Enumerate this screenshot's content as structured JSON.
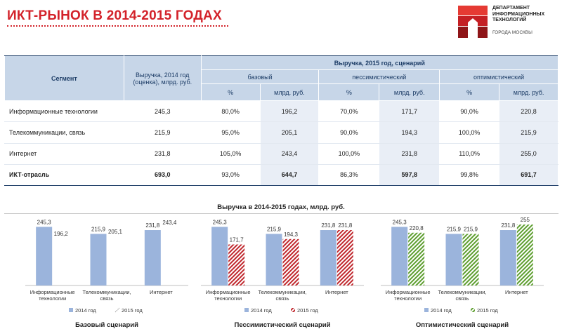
{
  "header": {
    "title": "ИКТ-РЫНОК В 2014-2015 ГОДАХ",
    "logo_lines": [
      "ДЕПАРТАМЕНТ",
      "ИНФОРМАЦИОННЫХ",
      "ТЕХНОЛОГИЙ"
    ],
    "logo_sub": "ГОРОДА МОСКВЫ",
    "logo_colors": [
      "#e53a33",
      "#c41f24",
      "#8f1518"
    ]
  },
  "table": {
    "h_segment": "Сегмент",
    "h_rev2014": "Выручка, 2014 год (оценка), млрд. руб.",
    "h_rev2015": "Выручка, 2015 год, сценарий",
    "scenarios": [
      "базовый",
      "пессимистический",
      "оптимистический"
    ],
    "h_pct": "%",
    "h_bln": "млрд. руб.",
    "rows": [
      {
        "name": "Информационные технологии",
        "v2014": "245,3",
        "base_pct": "80,0%",
        "base_val": "196,2",
        "pess_pct": "70,0%",
        "pess_val": "171,7",
        "opt_pct": "90,0%",
        "opt_val": "220,8"
      },
      {
        "name": "Телекоммуникации, связь",
        "v2014": "215,9",
        "base_pct": "95,0%",
        "base_val": "205,1",
        "pess_pct": "90,0%",
        "pess_val": "194,3",
        "opt_pct": "100,0%",
        "opt_val": "215,9"
      },
      {
        "name": "Интернет",
        "v2014": "231,8",
        "base_pct": "105,0%",
        "base_val": "243,4",
        "pess_pct": "100,0%",
        "pess_val": "231,8",
        "opt_pct": "110,0%",
        "opt_val": "255,0"
      },
      {
        "name": "ИКТ-отрасль",
        "v2014": "693,0",
        "base_pct": "93,0%",
        "base_val": "644,7",
        "pess_pct": "86,3%",
        "pess_val": "597,8",
        "opt_pct": "99,8%",
        "opt_val": "691,7"
      }
    ]
  },
  "charts_title": "Выручка в 2014-2015 годах, млрд. руб.",
  "chart_data": [
    {
      "type": "bar",
      "title": "Базовый сценарий",
      "categories": [
        [
          "Информационные",
          "технологии"
        ],
        [
          "Телекоммуникации,",
          "связь"
        ],
        [
          "Интернет"
        ]
      ],
      "series": [
        {
          "name": "2014 год",
          "values": [
            245.3,
            215.9,
            231.8
          ],
          "labels": [
            "245,3",
            "215,9",
            "231,8"
          ],
          "color": "#9bb4dc",
          "pattern": "solid"
        },
        {
          "name": "2015 год",
          "values": [
            196.2,
            205.1,
            243.4
          ],
          "labels": [
            "196,2",
            "205,1",
            "243,4"
          ],
          "color": "#ffffff",
          "pattern": "none"
        }
      ],
      "ylim": [
        0,
        270
      ]
    },
    {
      "type": "bar",
      "title": "Пессимистический сценарий",
      "categories": [
        [
          "Информационные",
          "технологии"
        ],
        [
          "Телекоммуникации,",
          "связь"
        ],
        [
          "Интернет"
        ]
      ],
      "series": [
        {
          "name": "2014 год",
          "values": [
            245.3,
            215.9,
            231.8
          ],
          "labels": [
            "245,3",
            "215,9",
            "231,8"
          ],
          "color": "#9bb4dc",
          "pattern": "solid"
        },
        {
          "name": "2015 год",
          "values": [
            171.7,
            194.3,
            231.8
          ],
          "labels": [
            "171,7",
            "194,3",
            "231,8"
          ],
          "color": "#c0272d",
          "pattern": "hatch"
        }
      ],
      "ylim": [
        0,
        270
      ]
    },
    {
      "type": "bar",
      "title": "Оптимистический сценарий",
      "categories": [
        [
          "Информационные",
          "технологии"
        ],
        [
          "Телекоммуникации,",
          "связь"
        ],
        [
          "Интернет"
        ]
      ],
      "series": [
        {
          "name": "2014 год",
          "values": [
            245.3,
            215.9,
            231.8
          ],
          "labels": [
            "245,3",
            "215,9",
            "231,8"
          ],
          "color": "#9bb4dc",
          "pattern": "solid"
        },
        {
          "name": "2015 год",
          "values": [
            220.8,
            215.9,
            255.0
          ],
          "labels": [
            "220,8",
            "215,9",
            "255"
          ],
          "color": "#5d9e2f",
          "pattern": "hatch"
        }
      ],
      "ylim": [
        0,
        270
      ]
    }
  ]
}
